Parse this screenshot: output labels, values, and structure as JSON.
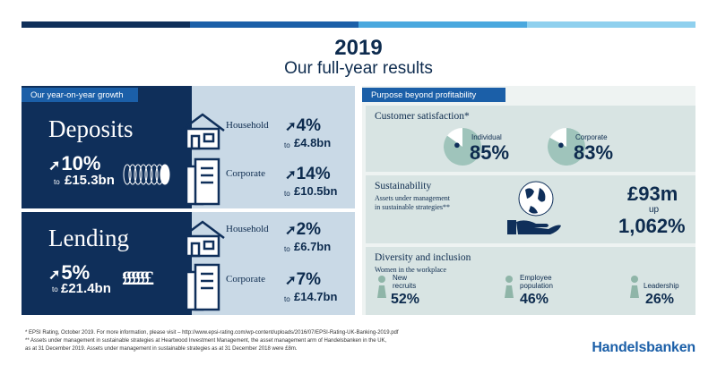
{
  "colors": {
    "bar1": "#0f2f5a",
    "bar2": "#1b5fa8",
    "bar3": "#4aa8de",
    "bar4": "#8fd0ee",
    "dark": "#0f2f5a",
    "light": "#c9d9e6",
    "teal": "#d8e4e3"
  },
  "header": {
    "year": "2019",
    "subtitle": "Our full-year results"
  },
  "growth": {
    "tab": "Our year-on-year growth",
    "deposits": {
      "title": "Deposits",
      "pct": "10%",
      "to": "to",
      "value": "£15.3bn",
      "household_label": "Household",
      "household_pct": "4%",
      "household_to": "to",
      "household_value": "£4.8bn",
      "corporate_label": "Corporate",
      "corporate_pct": "14%",
      "corporate_to": "to",
      "corporate_value": "£10.5bn"
    },
    "lending": {
      "title": "Lending",
      "pct": "5%",
      "to": "to",
      "value": "£21.4bn",
      "currency_icons": "££££££",
      "household_label": "Household",
      "household_pct": "2%",
      "household_to": "to",
      "household_value": "£6.7bn",
      "corporate_label": "Corporate",
      "corporate_pct": "7%",
      "corporate_to": "to",
      "corporate_value": "£14.7bn"
    }
  },
  "purpose": {
    "tab": "Purpose beyond profitability",
    "satisfaction": {
      "title": "Customer satisfaction*",
      "individual_label": "Individual",
      "individual_value": 85,
      "individual_text": "85%",
      "corporate_label": "Corporate",
      "corporate_value": 83,
      "corporate_text": "83%"
    },
    "sustainability": {
      "title": "Sustainability",
      "subtitle_line1": "Assets under management",
      "subtitle_line2": "in sustainable strategies**",
      "amount": "£93m",
      "up": "up",
      "pct": "1,062%"
    },
    "diversity": {
      "title": "Diversity and inclusion",
      "subtitle": "Women in the workplace",
      "items": [
        {
          "label_line1": "New",
          "label_line2": "recruits",
          "value": "52%"
        },
        {
          "label_line1": "Employee",
          "label_line2": "population",
          "value": "46%"
        },
        {
          "label_line1": "Leadership",
          "label_line2": "",
          "value": "26%"
        }
      ]
    }
  },
  "footnotes": {
    "line1": "*  EPSI Rating, October 2019. For more information, please visit – http://www.epsi-rating.com/wp-content/uploads/2016/07/EPSI-Rating-UK-Banking-2019.pdf",
    "line2": "** Assets under management in sustainable strategies at Heartwood Investment Management, the asset management arm of Handelsbanken in the UK,",
    "line3": "   as at 31 December 2019. Assets under management in sustainable strategies as at 31 December 2018 were £8m."
  },
  "brand": "Handelsbanken"
}
